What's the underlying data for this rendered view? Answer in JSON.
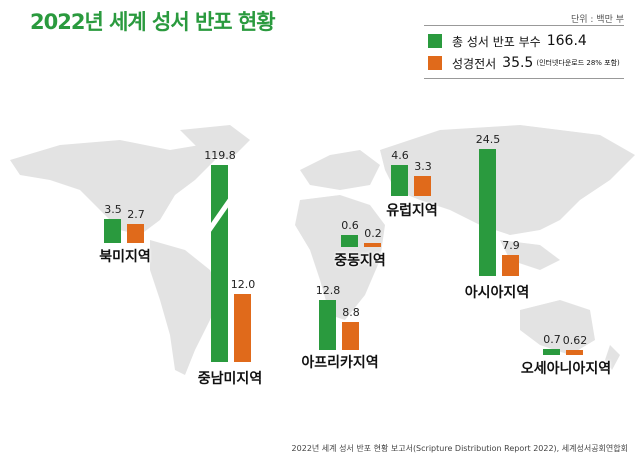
{
  "title": "2022년 세계 성서 반포 현황",
  "unit": "단위 : 백만 부",
  "legend": [
    {
      "label": "총 성서 반포 부수",
      "value": "166.4",
      "note": "",
      "color": "#2a9a3e"
    },
    {
      "label": "성경전서",
      "value": "35.5",
      "note": "(인터넷다운로드 28% 포함)",
      "color": "#e06a1b"
    }
  ],
  "source": "2022년 세계 성서 반포 현황 보고서(Scripture Distribution Report 2022), 세계성서공회연합회",
  "chart_data": {
    "type": "bar",
    "title": "2022년 세계 성서 반포 현황",
    "ylabel": "백만 부",
    "categories": [
      "북미지역",
      "중남미지역",
      "아프리카지역",
      "중동지역",
      "유럽지역",
      "아시아지역",
      "오세아니아지역"
    ],
    "series": [
      {
        "name": "총 성서 반포 부수",
        "values": [
          3.5,
          119.8,
          12.8,
          0.6,
          4.6,
          24.5,
          0.7
        ],
        "labels": [
          "3.5",
          "119.8",
          "12.8",
          "0.6",
          "4.6",
          "24.5",
          "0.7"
        ]
      },
      {
        "name": "성경전서",
        "values": [
          2.7,
          12.0,
          8.8,
          0.2,
          3.3,
          7.9,
          0.62
        ],
        "labels": [
          "2.7",
          "12.0",
          "8.8",
          "0.2",
          "3.3",
          "7.9",
          "0.62"
        ]
      }
    ]
  }
}
